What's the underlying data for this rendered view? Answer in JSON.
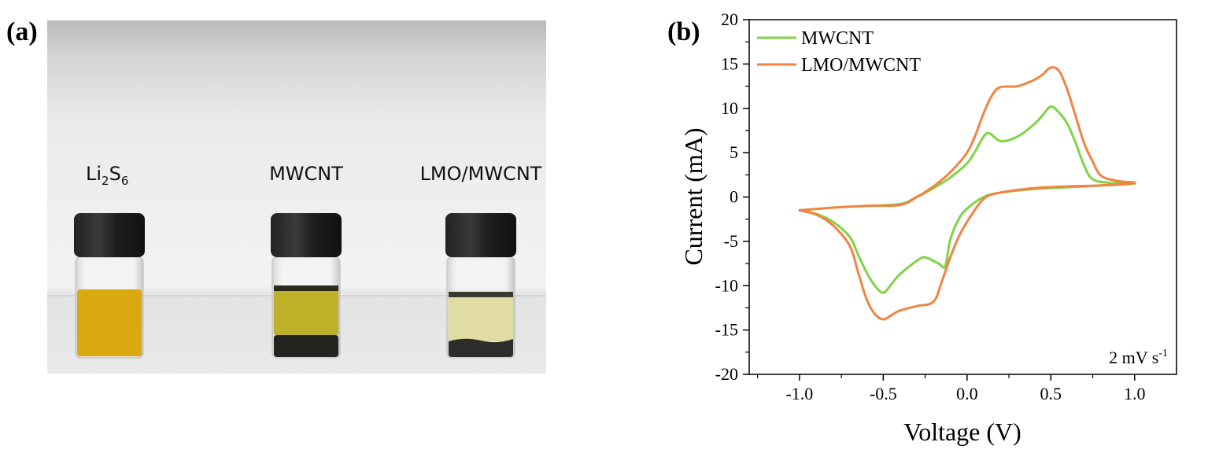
{
  "panels": {
    "a": "(a)",
    "b": "(b)"
  },
  "photo": {
    "vials": [
      {
        "label_main": "Li",
        "label_sub1": "2",
        "label_mid": "S",
        "label_sub2": "6",
        "liquid_color": "#d9a90f",
        "sediment": false
      },
      {
        "label_main": "MWCNT",
        "liquid_color": "#bfb02a",
        "sediment": true
      },
      {
        "label_main": "LMO/MWCNT",
        "liquid_color": "#e0dca4",
        "sediment": true
      }
    ]
  },
  "chart_data": {
    "type": "line",
    "title": "",
    "xlabel": "Voltage (V)",
    "ylabel": "Current (mA)",
    "xlim": [
      -1.3,
      1.25
    ],
    "ylim": [
      -20,
      20
    ],
    "xticks": [
      -1.0,
      -0.5,
      0.0,
      0.5,
      1.0
    ],
    "xtick_labels": [
      "-1.0",
      "-0.5",
      "0.0",
      "0.5",
      "1.0"
    ],
    "yticks": [
      -20,
      -15,
      -10,
      -5,
      0,
      5,
      10,
      15,
      20
    ],
    "ytick_labels": [
      "-20",
      "-15",
      "-10",
      "-5",
      "0",
      "5",
      "10",
      "15",
      "20"
    ],
    "annotation": {
      "text": "2 mV s",
      "superscript": "-1"
    },
    "legend_position": "top-left",
    "series": [
      {
        "name": "MWCNT",
        "color": "#80d347",
        "x": [
          -1.0,
          -0.8,
          -0.6,
          -0.4,
          -0.3,
          -0.2,
          -0.1,
          0.0,
          0.05,
          0.12,
          0.2,
          0.3,
          0.4,
          0.45,
          0.5,
          0.55,
          0.6,
          0.65,
          0.7,
          0.75,
          0.85,
          1.0,
          0.8,
          0.6,
          0.4,
          0.2,
          0.1,
          0.0,
          -0.05,
          -0.1,
          -0.13,
          -0.17,
          -0.25,
          -0.3,
          -0.4,
          -0.45,
          -0.5,
          -0.55,
          -0.6,
          -0.65,
          -0.7,
          -0.8,
          -0.9,
          -1.0
        ],
        "y": [
          -1.5,
          -1.2,
          -1.0,
          -0.8,
          0.0,
          1.0,
          2.2,
          3.8,
          5.2,
          7.2,
          6.3,
          6.8,
          8.2,
          9.2,
          10.2,
          9.5,
          8.2,
          6.0,
          3.5,
          2.0,
          1.6,
          1.5,
          1.3,
          1.1,
          0.9,
          0.5,
          0.0,
          -1.3,
          -2.5,
          -4.8,
          -7.8,
          -7.5,
          -6.8,
          -7.2,
          -8.7,
          -9.8,
          -10.8,
          -10.0,
          -8.5,
          -6.5,
          -4.5,
          -2.8,
          -1.9,
          -1.5
        ]
      },
      {
        "name": "LMO/MWCNT",
        "color": "#f28343",
        "x": [
          -1.0,
          -0.8,
          -0.6,
          -0.4,
          -0.3,
          -0.2,
          -0.1,
          0.0,
          0.05,
          0.1,
          0.15,
          0.2,
          0.3,
          0.4,
          0.45,
          0.5,
          0.55,
          0.6,
          0.65,
          0.7,
          0.75,
          0.8,
          0.9,
          1.0,
          0.8,
          0.6,
          0.4,
          0.2,
          0.1,
          0.0,
          -0.05,
          -0.1,
          -0.15,
          -0.2,
          -0.3,
          -0.4,
          -0.45,
          -0.5,
          -0.55,
          -0.6,
          -0.65,
          -0.7,
          -0.8,
          -0.9,
          -1.0
        ],
        "y": [
          -1.5,
          -1.2,
          -1.0,
          -0.9,
          0.0,
          1.2,
          2.8,
          5.0,
          7.0,
          9.5,
          11.5,
          12.4,
          12.5,
          13.2,
          13.8,
          14.6,
          14.2,
          12.0,
          9.0,
          6.0,
          4.0,
          2.4,
          1.8,
          1.6,
          1.3,
          1.2,
          1.0,
          0.5,
          -0.2,
          -2.8,
          -4.5,
          -6.8,
          -9.5,
          -11.8,
          -12.3,
          -12.8,
          -13.3,
          -13.8,
          -13.2,
          -11.5,
          -8.5,
          -5.5,
          -3.2,
          -2.0,
          -1.5
        ]
      }
    ]
  }
}
